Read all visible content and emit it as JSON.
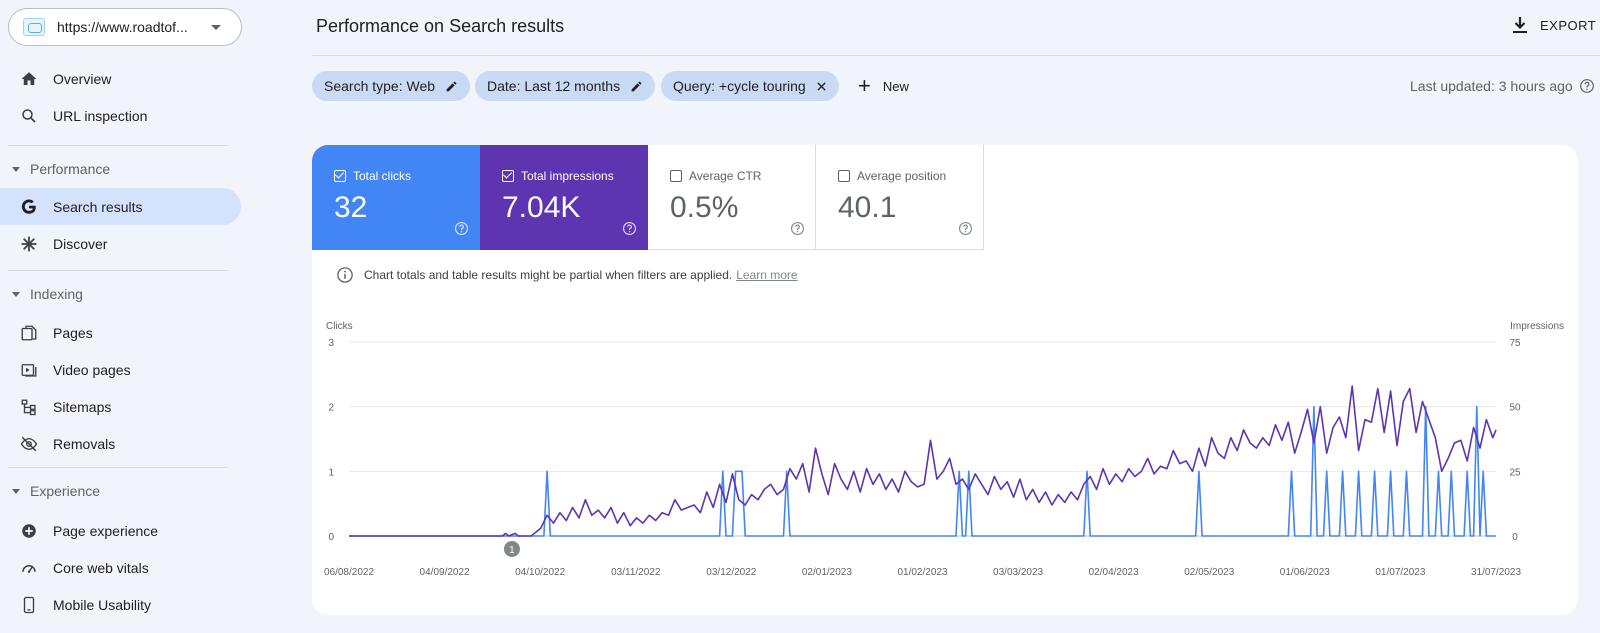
{
  "sidebar": {
    "property": "https://www.roadtof...",
    "items": {
      "overview": "Overview",
      "url_inspection": "URL inspection",
      "search_results": "Search results",
      "discover": "Discover",
      "pages": "Pages",
      "video_pages": "Video pages",
      "sitemaps": "Sitemaps",
      "removals": "Removals",
      "page_experience": "Page experience",
      "core_web_vitals": "Core web vitals",
      "mobile_usability": "Mobile Usability"
    },
    "sections": {
      "performance": "Performance",
      "indexing": "Indexing",
      "experience": "Experience"
    }
  },
  "header": {
    "title": "Performance on Search results",
    "export": "EXPORT"
  },
  "filters": {
    "search_type": "Search type: Web",
    "date": "Date: Last 12 months",
    "query": "Query: +cycle touring",
    "new": "New",
    "last_updated": "Last updated: 3 hours ago"
  },
  "metrics": {
    "clicks": {
      "label": "Total clicks",
      "value": "32",
      "checked": true
    },
    "impressions": {
      "label": "Total impressions",
      "value": "7.04K",
      "checked": true
    },
    "ctr": {
      "label": "Average CTR",
      "value": "0.5%",
      "checked": false
    },
    "position": {
      "label": "Average position",
      "value": "40.1",
      "checked": false
    }
  },
  "notice": {
    "text": "Chart totals and table results might be partial when filters are applied.",
    "link": "Learn more"
  },
  "colors": {
    "clicks": "#4285f4",
    "impressions": "#5e35b1",
    "chip": "#c9dbf4",
    "active_nav": "#d3e3fd"
  },
  "chart_data": {
    "type": "line",
    "left_axis_label": "Clicks",
    "right_axis_label": "Impressions",
    "left_ticks": [
      0,
      1,
      2,
      3
    ],
    "right_ticks": [
      0,
      25,
      50,
      75
    ],
    "x_tick_labels": [
      "06/08/2022",
      "04/09/2022",
      "04/10/2022",
      "03/11/2022",
      "03/12/2022",
      "02/01/2023",
      "01/02/2023",
      "03/03/2023",
      "02/04/2023",
      "02/05/2023",
      "01/06/2023",
      "01/07/2023",
      "31/07/2023"
    ],
    "annotation": "1",
    "annotation_day": 51,
    "days": 360,
    "series": [
      {
        "name": "Clicks",
        "axis": "left",
        "color": "#4285f4",
        "points": [
          [
            0,
            0
          ],
          [
            61,
            0
          ],
          [
            62,
            1
          ],
          [
            63,
            0
          ],
          [
            116,
            0
          ],
          [
            117,
            1
          ],
          [
            118,
            0
          ],
          [
            120,
            0
          ],
          [
            121,
            1
          ],
          [
            123,
            1
          ],
          [
            124,
            0
          ],
          [
            136,
            0
          ],
          [
            137,
            1
          ],
          [
            138,
            0
          ],
          [
            190,
            0
          ],
          [
            191,
            1
          ],
          [
            192,
            0
          ],
          [
            193,
            0
          ],
          [
            194,
            1
          ],
          [
            195,
            0
          ],
          [
            230,
            0
          ],
          [
            231,
            1
          ],
          [
            232,
            0
          ],
          [
            265,
            0
          ],
          [
            266,
            1
          ],
          [
            267,
            0
          ],
          [
            294,
            0
          ],
          [
            295,
            1
          ],
          [
            296,
            0
          ],
          [
            301,
            0
          ],
          [
            302,
            2
          ],
          [
            303,
            0
          ],
          [
            305,
            0
          ],
          [
            306,
            1
          ],
          [
            307,
            0
          ],
          [
            310,
            0
          ],
          [
            311,
            1
          ],
          [
            312,
            0
          ],
          [
            315,
            0
          ],
          [
            316,
            1
          ],
          [
            317,
            0
          ],
          [
            320,
            0
          ],
          [
            321,
            1
          ],
          [
            322,
            0
          ],
          [
            325,
            0
          ],
          [
            326,
            1
          ],
          [
            327,
            0
          ],
          [
            330,
            0
          ],
          [
            331,
            1
          ],
          [
            332,
            0
          ],
          [
            336,
            0
          ],
          [
            337,
            2
          ],
          [
            338,
            0
          ],
          [
            340,
            0
          ],
          [
            341,
            1
          ],
          [
            342,
            0
          ],
          [
            344,
            0
          ],
          [
            345,
            1
          ],
          [
            346,
            0
          ],
          [
            349,
            0
          ],
          [
            350,
            1
          ],
          [
            351,
            0
          ],
          [
            352,
            0
          ],
          [
            353,
            2
          ],
          [
            354,
            0
          ],
          [
            355,
            1
          ],
          [
            356,
            0
          ],
          [
            358,
            0
          ],
          [
            359,
            0
          ]
        ]
      },
      {
        "name": "Impressions",
        "axis": "right",
        "color": "#5e35b1",
        "points": [
          [
            0,
            0
          ],
          [
            48,
            0
          ],
          [
            49,
            1
          ],
          [
            50,
            0
          ],
          [
            52,
            1
          ],
          [
            53,
            0
          ],
          [
            57,
            0
          ],
          [
            60,
            3
          ],
          [
            62,
            8
          ],
          [
            64,
            5
          ],
          [
            66,
            9
          ],
          [
            68,
            6
          ],
          [
            70,
            11
          ],
          [
            72,
            7
          ],
          [
            74,
            14
          ],
          [
            76,
            8
          ],
          [
            78,
            10
          ],
          [
            80,
            7
          ],
          [
            82,
            11
          ],
          [
            84,
            5
          ],
          [
            86,
            9
          ],
          [
            88,
            4
          ],
          [
            90,
            7
          ],
          [
            92,
            5
          ],
          [
            94,
            8
          ],
          [
            96,
            6
          ],
          [
            98,
            9
          ],
          [
            100,
            8
          ],
          [
            102,
            14
          ],
          [
            104,
            10
          ],
          [
            106,
            11
          ],
          [
            108,
            12
          ],
          [
            110,
            9
          ],
          [
            112,
            17
          ],
          [
            114,
            11
          ],
          [
            116,
            20
          ],
          [
            118,
            13
          ],
          [
            120,
            24
          ],
          [
            122,
            14
          ],
          [
            124,
            12
          ],
          [
            126,
            16
          ],
          [
            128,
            14
          ],
          [
            130,
            18
          ],
          [
            132,
            20
          ],
          [
            134,
            16
          ],
          [
            136,
            18
          ],
          [
            138,
            26
          ],
          [
            140,
            22
          ],
          [
            142,
            28
          ],
          [
            144,
            17
          ],
          [
            146,
            34
          ],
          [
            148,
            24
          ],
          [
            150,
            16
          ],
          [
            152,
            28
          ],
          [
            154,
            22
          ],
          [
            156,
            18
          ],
          [
            158,
            25
          ],
          [
            160,
            17
          ],
          [
            162,
            26
          ],
          [
            164,
            20
          ],
          [
            166,
            24
          ],
          [
            168,
            18
          ],
          [
            170,
            22
          ],
          [
            172,
            17
          ],
          [
            174,
            25
          ],
          [
            176,
            21
          ],
          [
            178,
            19
          ],
          [
            180,
            20
          ],
          [
            182,
            37
          ],
          [
            184,
            22
          ],
          [
            186,
            25
          ],
          [
            188,
            30
          ],
          [
            190,
            20
          ],
          [
            192,
            22
          ],
          [
            194,
            18
          ],
          [
            196,
            24
          ],
          [
            198,
            20
          ],
          [
            200,
            16
          ],
          [
            202,
            23
          ],
          [
            204,
            18
          ],
          [
            206,
            21
          ],
          [
            208,
            15
          ],
          [
            210,
            22
          ],
          [
            212,
            14
          ],
          [
            214,
            18
          ],
          [
            216,
            13
          ],
          [
            218,
            17
          ],
          [
            220,
            12
          ],
          [
            222,
            16
          ],
          [
            224,
            13
          ],
          [
            226,
            17
          ],
          [
            228,
            14
          ],
          [
            230,
            20
          ],
          [
            232,
            23
          ],
          [
            234,
            18
          ],
          [
            236,
            26
          ],
          [
            238,
            20
          ],
          [
            240,
            24
          ],
          [
            242,
            21
          ],
          [
            244,
            26
          ],
          [
            246,
            23
          ],
          [
            248,
            25
          ],
          [
            250,
            30
          ],
          [
            252,
            24
          ],
          [
            254,
            27
          ],
          [
            256,
            26
          ],
          [
            258,
            33
          ],
          [
            260,
            28
          ],
          [
            262,
            29
          ],
          [
            264,
            25
          ],
          [
            266,
            34
          ],
          [
            268,
            27
          ],
          [
            270,
            38
          ],
          [
            272,
            32
          ],
          [
            274,
            30
          ],
          [
            276,
            38
          ],
          [
            278,
            33
          ],
          [
            280,
            41
          ],
          [
            282,
            36
          ],
          [
            284,
            34
          ],
          [
            286,
            38
          ],
          [
            288,
            35
          ],
          [
            290,
            43
          ],
          [
            292,
            37
          ],
          [
            294,
            44
          ],
          [
            296,
            32
          ],
          [
            298,
            40
          ],
          [
            300,
            49
          ],
          [
            302,
            36
          ],
          [
            304,
            50
          ],
          [
            306,
            32
          ],
          [
            308,
            42
          ],
          [
            310,
            46
          ],
          [
            312,
            38
          ],
          [
            314,
            58
          ],
          [
            316,
            33
          ],
          [
            318,
            45
          ],
          [
            320,
            44
          ],
          [
            322,
            57
          ],
          [
            324,
            40
          ],
          [
            326,
            56
          ],
          [
            328,
            35
          ],
          [
            330,
            52
          ],
          [
            332,
            57
          ],
          [
            334,
            40
          ],
          [
            336,
            52
          ],
          [
            338,
            45
          ],
          [
            340,
            38
          ],
          [
            342,
            25
          ],
          [
            344,
            30
          ],
          [
            346,
            36
          ],
          [
            348,
            37
          ],
          [
            350,
            29
          ],
          [
            352,
            42
          ],
          [
            354,
            34
          ],
          [
            356,
            45
          ],
          [
            358,
            38
          ],
          [
            359,
            41
          ]
        ]
      }
    ]
  }
}
